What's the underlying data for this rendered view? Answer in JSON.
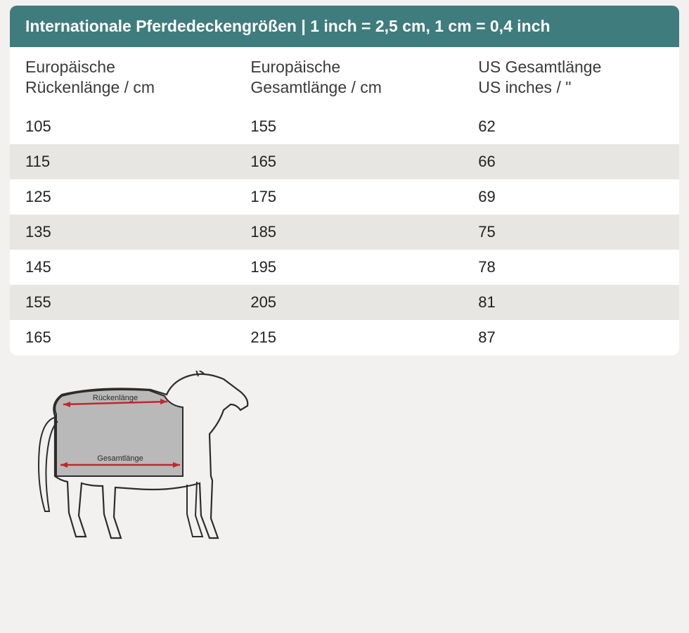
{
  "title": "Internationale Pferdedeckengrößen | 1 inch = 2,5 cm, 1 cm = 0,4 inch",
  "columns": [
    "Europäische Rückenlänge / cm",
    "Europäische Gesamtlänge / cm",
    "US Gesamtlänge US inches / \""
  ],
  "rows": [
    [
      "105",
      "155",
      "62"
    ],
    [
      "115",
      "165",
      "66"
    ],
    [
      "125",
      "175",
      "69"
    ],
    [
      "135",
      "185",
      "75"
    ],
    [
      "145",
      "195",
      "78"
    ],
    [
      "155",
      "205",
      "81"
    ],
    [
      "165",
      "215",
      "87"
    ]
  ],
  "diagram": {
    "label_top": "Rückenlänge",
    "label_bottom": "Gesamtlänge",
    "arrow_color": "#c1272d",
    "outline_color": "#2c2c2c",
    "blanket_fill": "#b9b9b9"
  },
  "style": {
    "title_bg": "#3f7c7d",
    "title_text": "#ffffff",
    "header_bg": "#ffffff",
    "header_text": "#3a3a3a",
    "row_odd_bg": "#ffffff",
    "row_even_bg": "#e7e6e2",
    "row_text": "#222222",
    "page_bg": "#f2f1ef",
    "font_size_title": 23,
    "font_size_header": 23,
    "font_size_cell": 22,
    "border_radius": 10
  }
}
